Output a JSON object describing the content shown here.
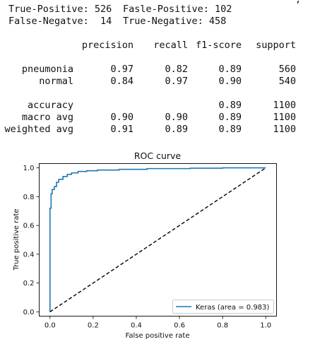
{
  "cut_top_text": ",",
  "confusion": {
    "tp": "True-Positive: 526",
    "fp": "Fasle-Positive: 102",
    "fn": "False-Negatve:  14",
    "tn": "True-Negative: 458"
  },
  "report": {
    "headers": [
      "precision",
      "recall",
      "f1-score",
      "support"
    ],
    "rows": [
      {
        "label": "pneumonia",
        "precision": "0.97",
        "recall": "0.82",
        "f1": "0.89",
        "support": "560"
      },
      {
        "label": "normal",
        "precision": "0.84",
        "recall": "0.97",
        "f1": "0.90",
        "support": "540"
      },
      {
        "label": "accuracy",
        "precision": "",
        "recall": "",
        "f1": "0.89",
        "support": "1100"
      },
      {
        "label": "macro avg",
        "precision": "0.90",
        "recall": "0.90",
        "f1": "0.89",
        "support": "1100"
      },
      {
        "label": "weighted avg",
        "precision": "0.91",
        "recall": "0.89",
        "f1": "0.89",
        "support": "1100"
      }
    ]
  },
  "chart_data": {
    "type": "line",
    "title": "ROC curve",
    "xlabel": "False positive rate",
    "ylabel": "True positive rate",
    "xlim": [
      -0.05,
      1.05
    ],
    "ylim": [
      -0.03,
      1.03
    ],
    "xticks": [
      0.0,
      0.2,
      0.4,
      0.6,
      0.8,
      1.0
    ],
    "yticks": [
      0.0,
      0.2,
      0.4,
      0.6,
      0.8,
      1.0
    ],
    "tick_labels_x": [
      "0.0",
      "0.2",
      "0.4",
      "0.6",
      "0.8",
      "1.0"
    ],
    "tick_labels_y": [
      "0.0",
      "0.2",
      "0.4",
      "0.6",
      "0.8",
      "1.0"
    ],
    "grid": false,
    "legend_position": "lower-right",
    "series": [
      {
        "name": "Keras (area = 0.983)",
        "color": "#1f77b4",
        "style": "solid",
        "x": [
          0.0,
          0.0,
          0.005,
          0.005,
          0.01,
          0.01,
          0.02,
          0.02,
          0.03,
          0.03,
          0.04,
          0.04,
          0.06,
          0.06,
          0.08,
          0.08,
          0.1,
          0.1,
          0.13,
          0.13,
          0.17,
          0.17,
          0.22,
          0.22,
          0.32,
          0.32,
          0.45,
          0.45,
          0.65,
          0.65,
          0.8,
          0.8,
          1.0
        ],
        "y": [
          0.0,
          0.72,
          0.72,
          0.82,
          0.82,
          0.85,
          0.85,
          0.87,
          0.87,
          0.9,
          0.9,
          0.92,
          0.92,
          0.94,
          0.94,
          0.955,
          0.955,
          0.965,
          0.965,
          0.975,
          0.975,
          0.98,
          0.98,
          0.985,
          0.985,
          0.99,
          0.99,
          0.995,
          0.995,
          0.998,
          0.998,
          1.0,
          1.0
        ]
      },
      {
        "name": "",
        "color": "#000000",
        "style": "dashed",
        "x": [
          0.0,
          1.0
        ],
        "y": [
          0.0,
          1.0
        ]
      }
    ]
  }
}
